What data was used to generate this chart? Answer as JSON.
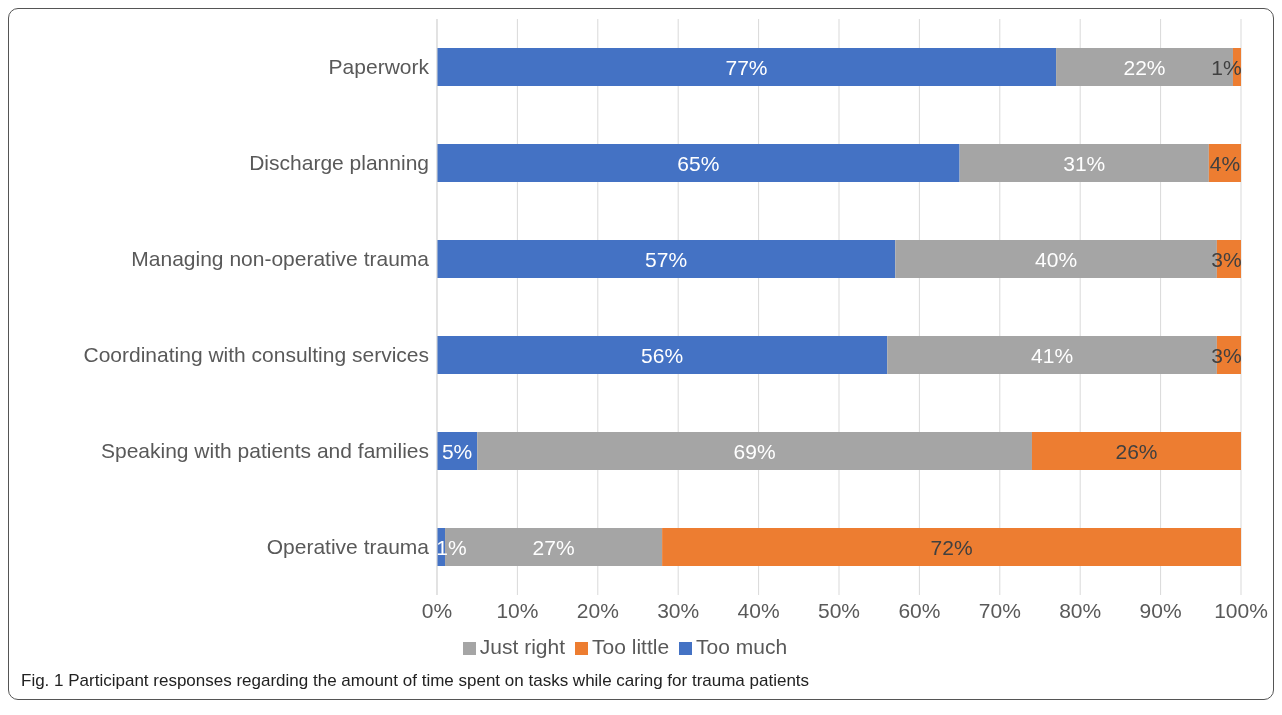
{
  "chart_data": {
    "type": "bar",
    "orientation": "horizontal",
    "stacked": true,
    "categories": [
      "Paperwork",
      "Discharge planning",
      "Managing non-operative trauma",
      "Coordinating with consulting services",
      "Speaking with patients and families",
      "Operative trauma"
    ],
    "series": [
      {
        "name": "Too much",
        "color": "#4472c4",
        "values": [
          77,
          65,
          57,
          56,
          5,
          1
        ],
        "value_labels": [
          "77%",
          "65%",
          "57%",
          "56%",
          "5%",
          "1%"
        ]
      },
      {
        "name": "Just right",
        "color": "#a5a5a5",
        "values": [
          22,
          31,
          40,
          41,
          69,
          27
        ],
        "value_labels": [
          "22%",
          "31%",
          "40%",
          "41%",
          "69%",
          "27%"
        ]
      },
      {
        "name": "Too little",
        "color": "#ed7d31",
        "values": [
          1,
          4,
          3,
          3,
          26,
          72
        ],
        "value_labels": [
          "1%",
          "4%",
          "3%",
          "3%",
          "26%",
          "72%"
        ]
      }
    ],
    "xlim": [
      0,
      100
    ],
    "xticks": [
      {
        "value": 0,
        "label": "0%"
      },
      {
        "value": 10,
        "label": "10%"
      },
      {
        "value": 20,
        "label": "20%"
      },
      {
        "value": 30,
        "label": "30%"
      },
      {
        "value": 40,
        "label": "40%"
      },
      {
        "value": 50,
        "label": "50%"
      },
      {
        "value": 60,
        "label": "60%"
      },
      {
        "value": 70,
        "label": "70%"
      },
      {
        "value": 80,
        "label": "80%"
      },
      {
        "value": 90,
        "label": "90%"
      },
      {
        "value": 100,
        "label": "100%"
      }
    ],
    "grid": "x",
    "legend": "bottom",
    "annotations": [
      "Fig. 1  Participant responses regarding the amount of time spent on tasks while caring for trauma patients"
    ]
  }
}
